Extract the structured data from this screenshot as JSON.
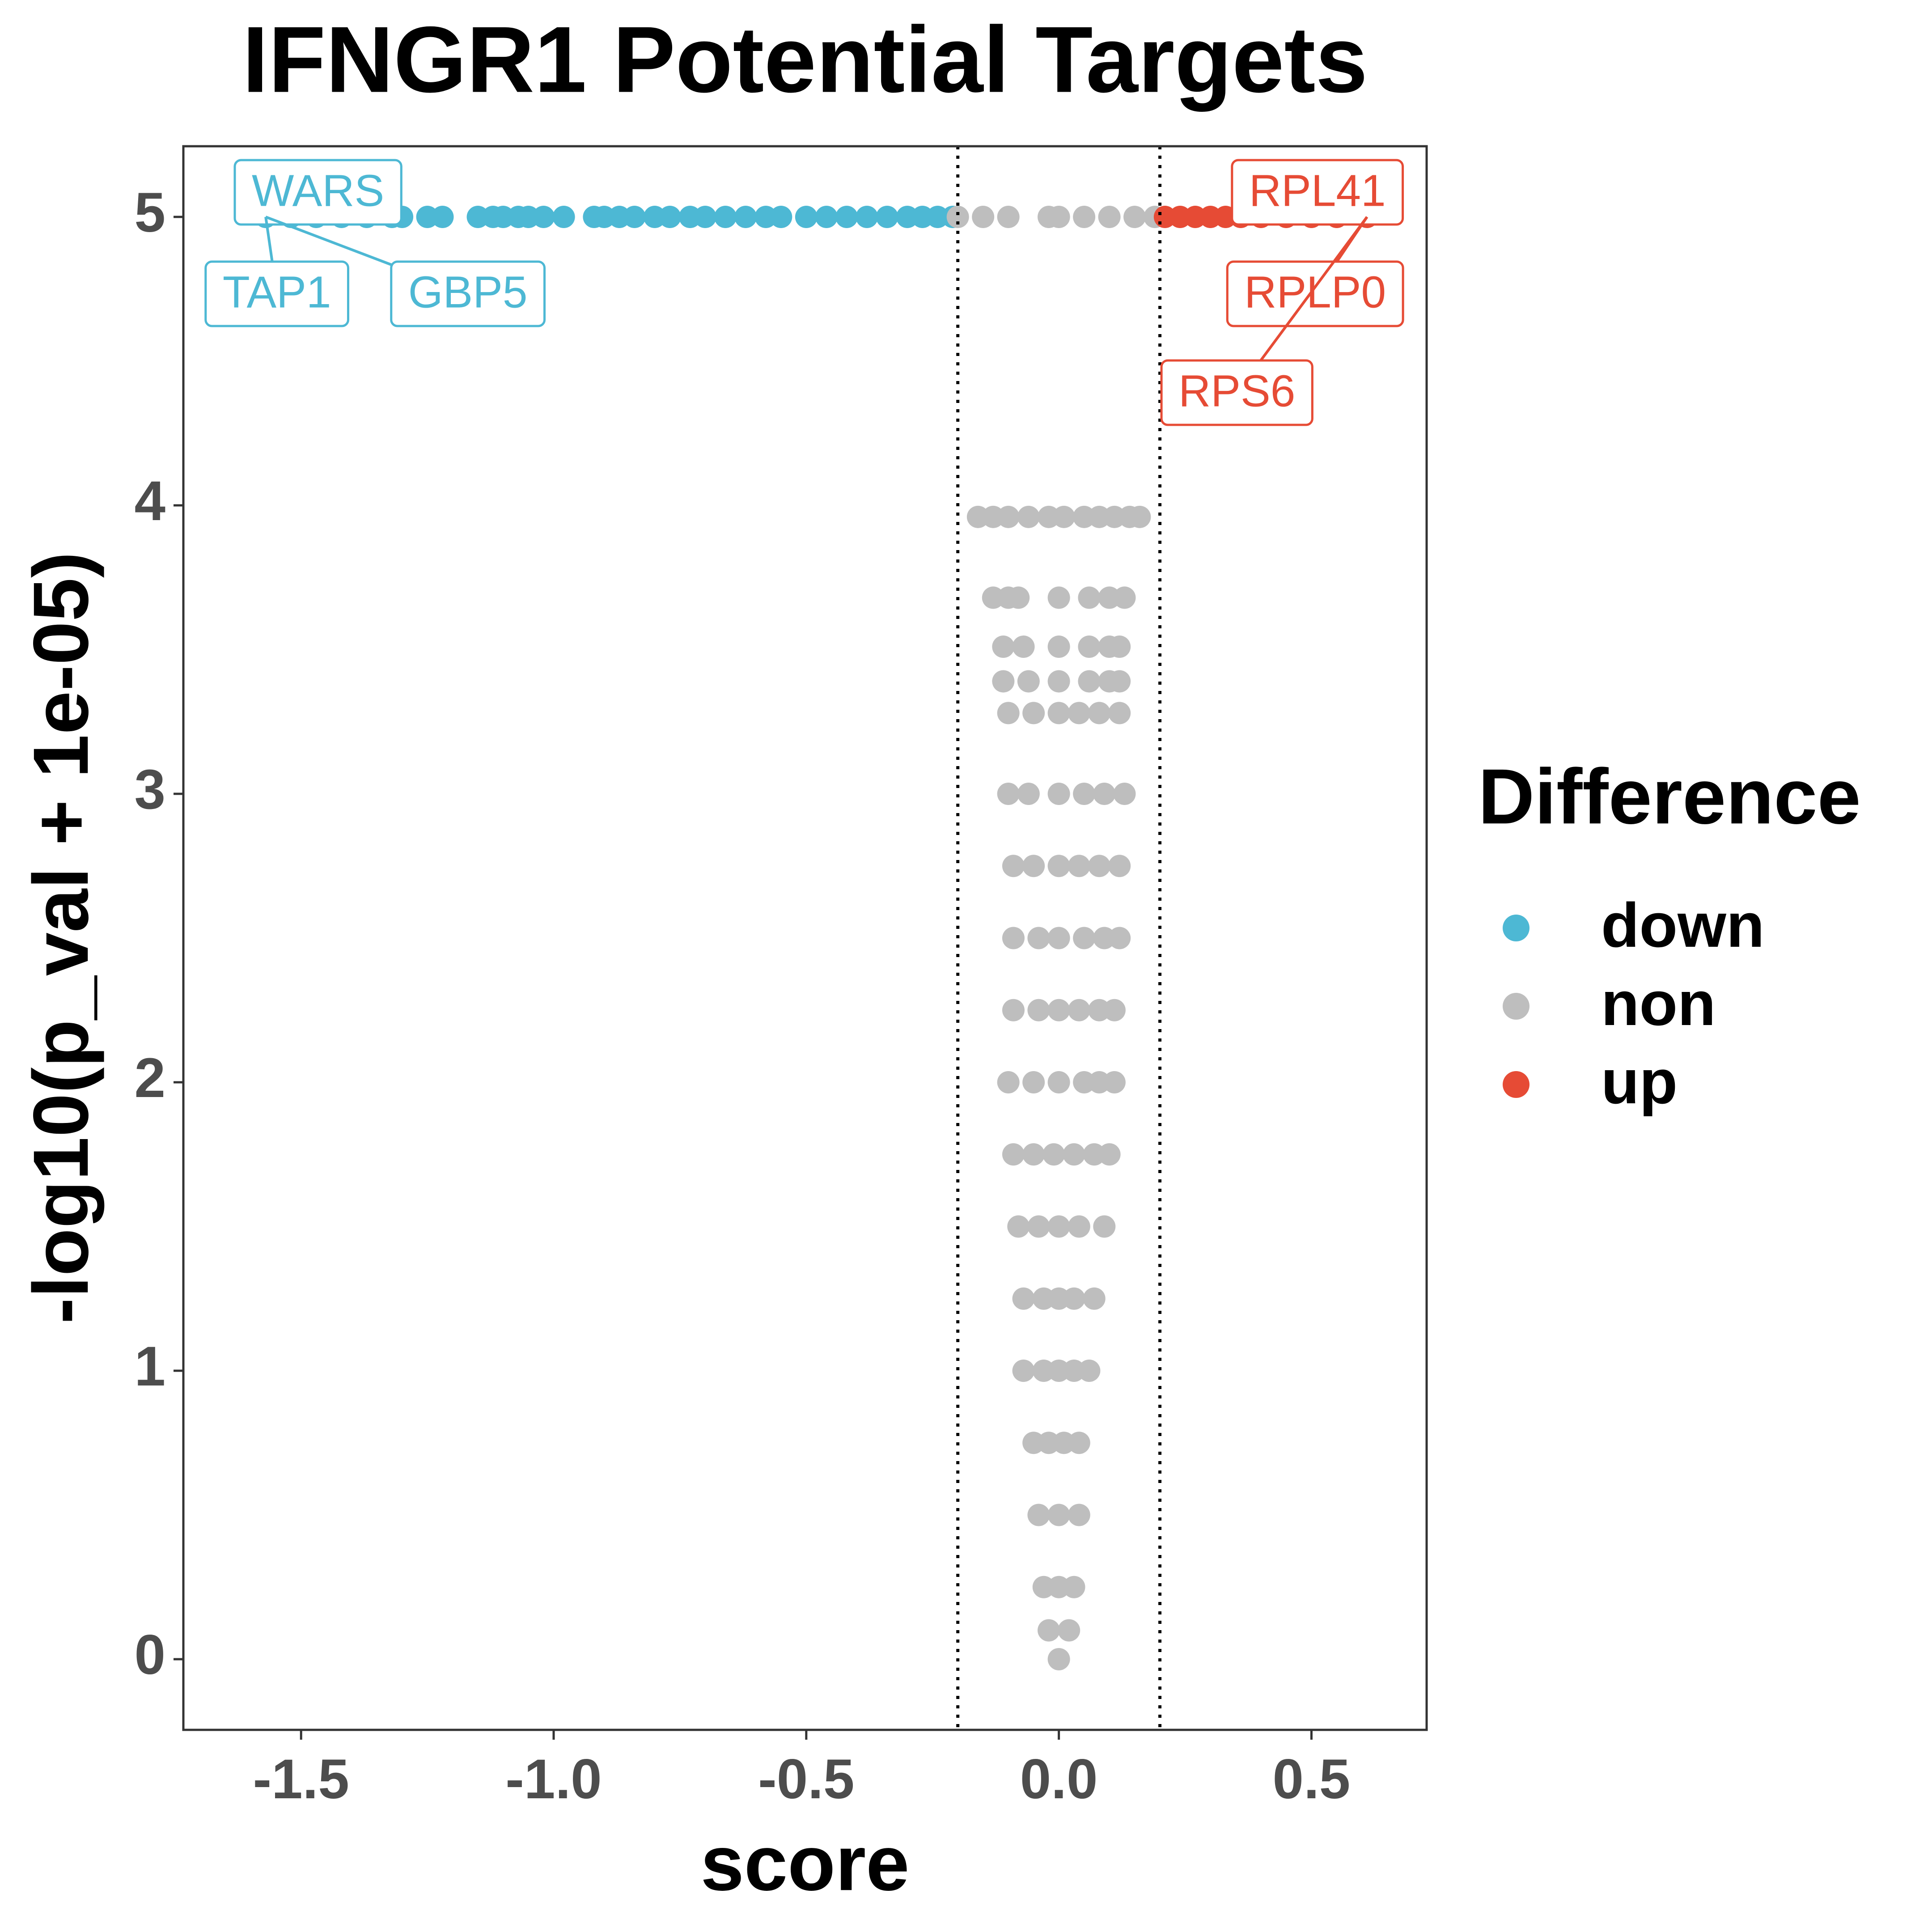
{
  "chart_data": {
    "type": "scatter",
    "title": "IFNGR1 Potential Targets",
    "x_label": "score",
    "y_label": "-log10(p_val + 1e-05)",
    "legend_title": "Difference",
    "xlim": [
      -1.733,
      0.728
    ],
    "ylim": [
      -0.245,
      5.245
    ],
    "xticks": [
      -1.5,
      {
        "value": -1.0,
        "label": "-1.0"
      },
      -0.5,
      {
        "value": 0.0,
        "label": "0.0"
      },
      0.5
    ],
    "yticks": [
      0,
      1,
      2,
      3,
      4,
      5
    ],
    "grid": false,
    "vlines": [
      -0.2,
      0.2
    ],
    "series": [
      {
        "name": "down",
        "color": "#4db8d4",
        "x": [
          -1.57,
          -1.52,
          -1.47,
          -1.42,
          -1.37,
          -1.32,
          -1.3,
          -1.25,
          -1.22,
          -1.15,
          -1.12,
          -1.1,
          -1.07,
          -1.05,
          -1.02,
          -0.98,
          -0.92,
          -0.9,
          -0.87,
          -0.84,
          -0.8,
          -0.77,
          -0.73,
          -0.7,
          -0.66,
          -0.62,
          -0.58,
          -0.55,
          -0.5,
          -0.46,
          -0.42,
          -0.38,
          -0.34,
          -0.3,
          -0.27,
          -0.24,
          -0.21
        ],
        "values": [
          5,
          5,
          5,
          5,
          5,
          5,
          5,
          5,
          5,
          5,
          5,
          5,
          5,
          5,
          5,
          5,
          5,
          5,
          5,
          5,
          5,
          5,
          5,
          5,
          5,
          5,
          5,
          5,
          5,
          5,
          5,
          5,
          5,
          5,
          5,
          5,
          5
        ]
      },
      {
        "name": "non",
        "color": "#bebebe",
        "x": [
          -0.2,
          -0.15,
          -0.1,
          -0.02,
          0.0,
          0.05,
          0.1,
          0.15,
          0.19,
          -0.16,
          -0.13,
          -0.1,
          -0.06,
          -0.02,
          0.01,
          0.05,
          0.08,
          0.11,
          0.14,
          0.16,
          -0.13,
          -0.1,
          -0.08,
          0.0,
          0.06,
          0.1,
          0.13,
          -0.11,
          -0.07,
          0.0,
          0.06,
          0.1,
          0.12,
          -0.11,
          -0.06,
          0.0,
          0.06,
          0.1,
          0.12,
          -0.1,
          -0.05,
          0.0,
          0.04,
          0.08,
          0.12,
          -0.1,
          -0.06,
          0.0,
          0.05,
          0.09,
          0.13,
          -0.09,
          -0.05,
          0.0,
          0.04,
          0.08,
          0.12,
          -0.09,
          -0.04,
          0.0,
          0.05,
          0.09,
          0.12,
          -0.09,
          -0.04,
          0.0,
          0.04,
          0.08,
          0.11,
          -0.1,
          -0.05,
          0.0,
          0.05,
          0.08,
          0.11,
          -0.09,
          -0.05,
          -0.01,
          0.03,
          0.07,
          0.1,
          -0.08,
          -0.04,
          0.0,
          0.04,
          0.09,
          -0.07,
          -0.03,
          0.0,
          0.03,
          0.07,
          -0.07,
          -0.03,
          0.0,
          0.03,
          0.06,
          -0.05,
          -0.02,
          0.01,
          0.04,
          -0.04,
          0.0,
          0.04,
          -0.03,
          0.0,
          0.03,
          -0.02,
          0.02,
          0.0
        ],
        "values": [
          5,
          5,
          5,
          5,
          5,
          5,
          5,
          5,
          5,
          3.96,
          3.96,
          3.96,
          3.96,
          3.96,
          3.96,
          3.96,
          3.96,
          3.96,
          3.96,
          3.96,
          3.68,
          3.68,
          3.68,
          3.68,
          3.68,
          3.68,
          3.68,
          3.51,
          3.51,
          3.51,
          3.51,
          3.51,
          3.51,
          3.39,
          3.39,
          3.39,
          3.39,
          3.39,
          3.39,
          3.28,
          3.28,
          3.28,
          3.28,
          3.28,
          3.28,
          3.0,
          3.0,
          3.0,
          3.0,
          3.0,
          3.0,
          2.75,
          2.75,
          2.75,
          2.75,
          2.75,
          2.75,
          2.5,
          2.5,
          2.5,
          2.5,
          2.5,
          2.5,
          2.25,
          2.25,
          2.25,
          2.25,
          2.25,
          2.25,
          2.0,
          2.0,
          2.0,
          2.0,
          2.0,
          2.0,
          1.75,
          1.75,
          1.75,
          1.75,
          1.75,
          1.75,
          1.5,
          1.5,
          1.5,
          1.5,
          1.5,
          1.25,
          1.25,
          1.25,
          1.25,
          1.25,
          1.0,
          1.0,
          1.0,
          1.0,
          1.0,
          0.75,
          0.75,
          0.75,
          0.75,
          0.5,
          0.5,
          0.5,
          0.25,
          0.25,
          0.25,
          0.1,
          0.1,
          0.0
        ]
      },
      {
        "name": "up",
        "color": "#e64b35",
        "x": [
          0.21,
          0.24,
          0.27,
          0.3,
          0.33,
          0.36,
          0.4,
          0.45,
          0.5,
          0.55,
          0.61
        ],
        "values": [
          5,
          5,
          5,
          5,
          5,
          5,
          5,
          5,
          5,
          5,
          5
        ]
      }
    ],
    "annotations": [
      {
        "label": "WARS",
        "x": -1.57,
        "y": 5,
        "series": 0
      },
      {
        "label": "TAP1",
        "x": -1.57,
        "y": 5,
        "series": 0
      },
      {
        "label": "GBP5",
        "x": -1.57,
        "y": 5,
        "series": 0
      },
      {
        "label": "RPL41",
        "x": 0.61,
        "y": 5,
        "series": 2
      },
      {
        "label": "RPLP0",
        "x": 0.61,
        "y": 5,
        "series": 2
      },
      {
        "label": "RPS6",
        "x": 0.61,
        "y": 5,
        "series": 2
      }
    ]
  }
}
